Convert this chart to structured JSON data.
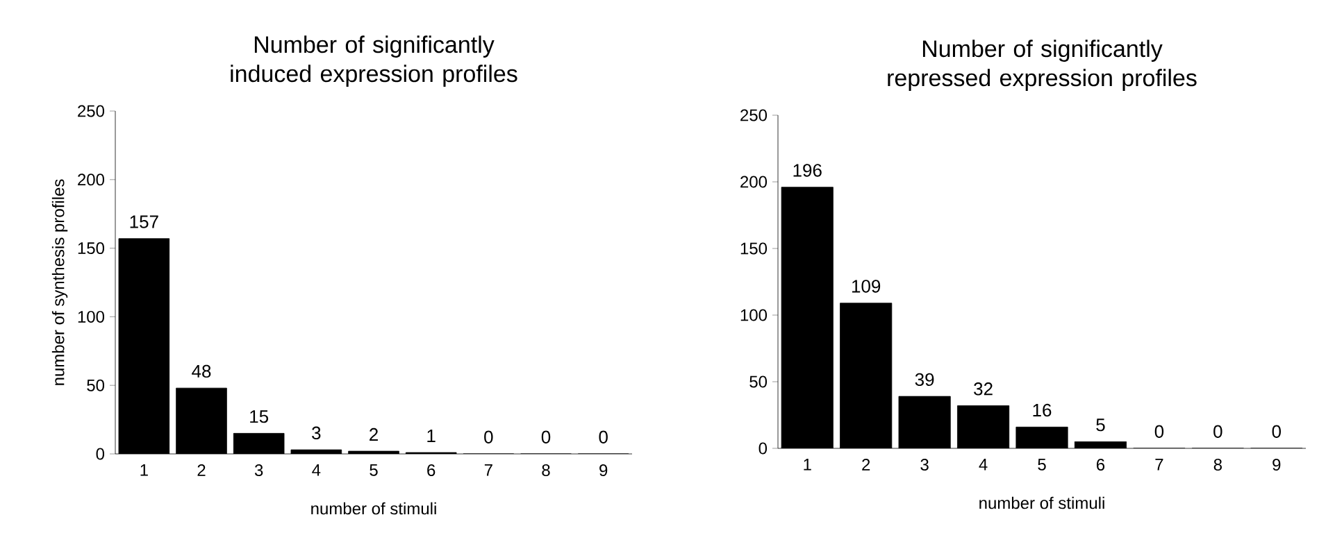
{
  "chart_data": [
    {
      "type": "bar",
      "title": "Number of significantly induced expression profiles",
      "xlabel": "number of stimuli",
      "ylabel": "number of synthesis profiles",
      "categories": [
        "1",
        "2",
        "3",
        "4",
        "5",
        "6",
        "7",
        "8",
        "9"
      ],
      "values": [
        157,
        48,
        15,
        3,
        2,
        1,
        0,
        0,
        0
      ],
      "color": "#000000",
      "ylim": [
        0,
        250
      ],
      "yticks": [
        0,
        50,
        100,
        150,
        200,
        250
      ],
      "data_labels": true
    },
    {
      "type": "bar",
      "title": "Number of significantly repressed expression profiles",
      "xlabel": "number of stimuli",
      "categories": [
        "1",
        "2",
        "3",
        "4",
        "5",
        "6",
        "7",
        "8",
        "9"
      ],
      "values": [
        196,
        109,
        39,
        32,
        16,
        5,
        0,
        0,
        0
      ],
      "color": "#000000",
      "ylim": [
        0,
        250
      ],
      "yticks": [
        0,
        50,
        100,
        150,
        200,
        250
      ],
      "data_labels": true
    }
  ]
}
